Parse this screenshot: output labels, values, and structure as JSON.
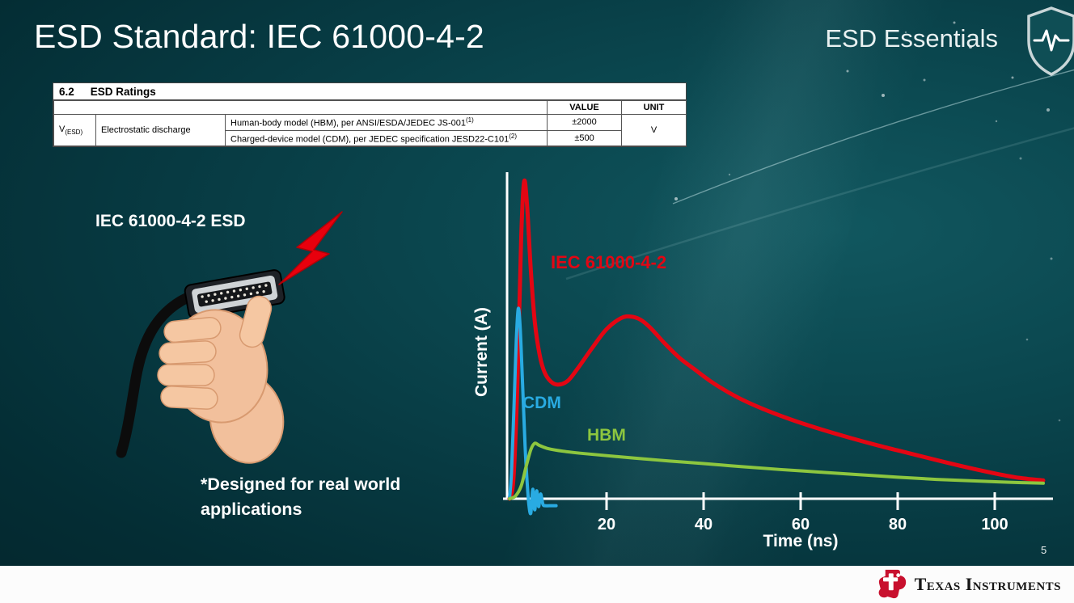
{
  "slide": {
    "title": "ESD Standard: IEC 61000-4-2",
    "brand": "ESD Essentials",
    "page_number": "5"
  },
  "footer": {
    "logo_text": "Texas Instruments"
  },
  "ratings_table": {
    "section_number": "6.2",
    "section_title": "ESD Ratings",
    "col_value": "VALUE",
    "col_unit": "UNIT",
    "param_symbol": "V",
    "param_symbol_sub": "(ESD)",
    "param_name": "Electrostatic discharge",
    "rows": [
      {
        "description": "Human-body model (HBM), per ANSI/ESDA/JEDEC JS-001",
        "footnote": "(1)",
        "value": "±2000"
      },
      {
        "description": "Charged-device model (CDM), per JEDEC specification JESD22-C101",
        "footnote": "(2)",
        "value": "±500"
      }
    ],
    "unit": "V"
  },
  "left_panel": {
    "label": "IEC 61000-4-2 ESD",
    "caption": "*Designed for real world applications"
  },
  "chart_data": {
    "type": "line",
    "title": "",
    "xlabel": "Time (ns)",
    "ylabel": "Current (A)",
    "xlim": [
      0,
      110
    ],
    "x_ticks": [
      20,
      40,
      60,
      80,
      100
    ],
    "ylim": [
      0,
      1.05
    ],
    "y_units": "relative amplitude (no y ticks shown)",
    "grid": false,
    "legend": "inline-labels",
    "axis_color": "#ffffff",
    "series": [
      {
        "name": "IEC 61000-4-2",
        "color": "#e30613",
        "points": [
          [
            0,
            0
          ],
          [
            0.8,
            0.06
          ],
          [
            1.6,
            0.35
          ],
          [
            2.4,
            0.82
          ],
          [
            3,
            1.0
          ],
          [
            3.6,
            0.93
          ],
          [
            4.4,
            0.72
          ],
          [
            5.2,
            0.56
          ],
          [
            6.2,
            0.455
          ],
          [
            7.2,
            0.4
          ],
          [
            8.5,
            0.37
          ],
          [
            10,
            0.36
          ],
          [
            12,
            0.372
          ],
          [
            14,
            0.41
          ],
          [
            17,
            0.475
          ],
          [
            20,
            0.535
          ],
          [
            23,
            0.57
          ],
          [
            25,
            0.575
          ],
          [
            27,
            0.565
          ],
          [
            29,
            0.54
          ],
          [
            32,
            0.49
          ],
          [
            35,
            0.445
          ],
          [
            38,
            0.41
          ],
          [
            42,
            0.365
          ],
          [
            47,
            0.32
          ],
          [
            52,
            0.285
          ],
          [
            58,
            0.25
          ],
          [
            64,
            0.22
          ],
          [
            70,
            0.193
          ],
          [
            76,
            0.168
          ],
          [
            82,
            0.145
          ],
          [
            88,
            0.122
          ],
          [
            94,
            0.1
          ],
          [
            100,
            0.08
          ],
          [
            105,
            0.066
          ],
          [
            110,
            0.058
          ]
        ]
      },
      {
        "name": "CDM",
        "color": "#29abe2",
        "points": [
          [
            0,
            0
          ],
          [
            0.4,
            0.08
          ],
          [
            0.9,
            0.28
          ],
          [
            1.4,
            0.5
          ],
          [
            1.8,
            0.6
          ],
          [
            2.2,
            0.54
          ],
          [
            2.7,
            0.36
          ],
          [
            3.2,
            0.17
          ],
          [
            3.6,
            0.06
          ],
          [
            4.0,
            -0.02
          ],
          [
            4.4,
            -0.045
          ],
          [
            4.8,
            0.03
          ],
          [
            5.2,
            -0.035
          ],
          [
            5.6,
            0.025
          ],
          [
            6.0,
            -0.025
          ],
          [
            6.4,
            0.015
          ],
          [
            6.9,
            -0.018
          ],
          [
            7.4,
            -0.022
          ],
          [
            8.2,
            -0.022
          ],
          [
            9.6,
            -0.022
          ]
        ]
      },
      {
        "name": "HBM",
        "color": "#8dc63f",
        "points": [
          [
            0,
            0
          ],
          [
            1.2,
            0.008
          ],
          [
            2.4,
            0.04
          ],
          [
            3.4,
            0.1
          ],
          [
            4.4,
            0.155
          ],
          [
            5.2,
            0.175
          ],
          [
            6.2,
            0.168
          ],
          [
            8,
            0.158
          ],
          [
            11,
            0.15
          ],
          [
            15,
            0.143
          ],
          [
            20,
            0.136
          ],
          [
            26,
            0.128
          ],
          [
            33,
            0.119
          ],
          [
            40,
            0.111
          ],
          [
            48,
            0.101
          ],
          [
            56,
            0.092
          ],
          [
            64,
            0.084
          ],
          [
            72,
            0.076
          ],
          [
            80,
            0.068
          ],
          [
            88,
            0.061
          ],
          [
            96,
            0.056
          ],
          [
            103,
            0.052
          ],
          [
            110,
            0.049
          ]
        ]
      }
    ]
  }
}
